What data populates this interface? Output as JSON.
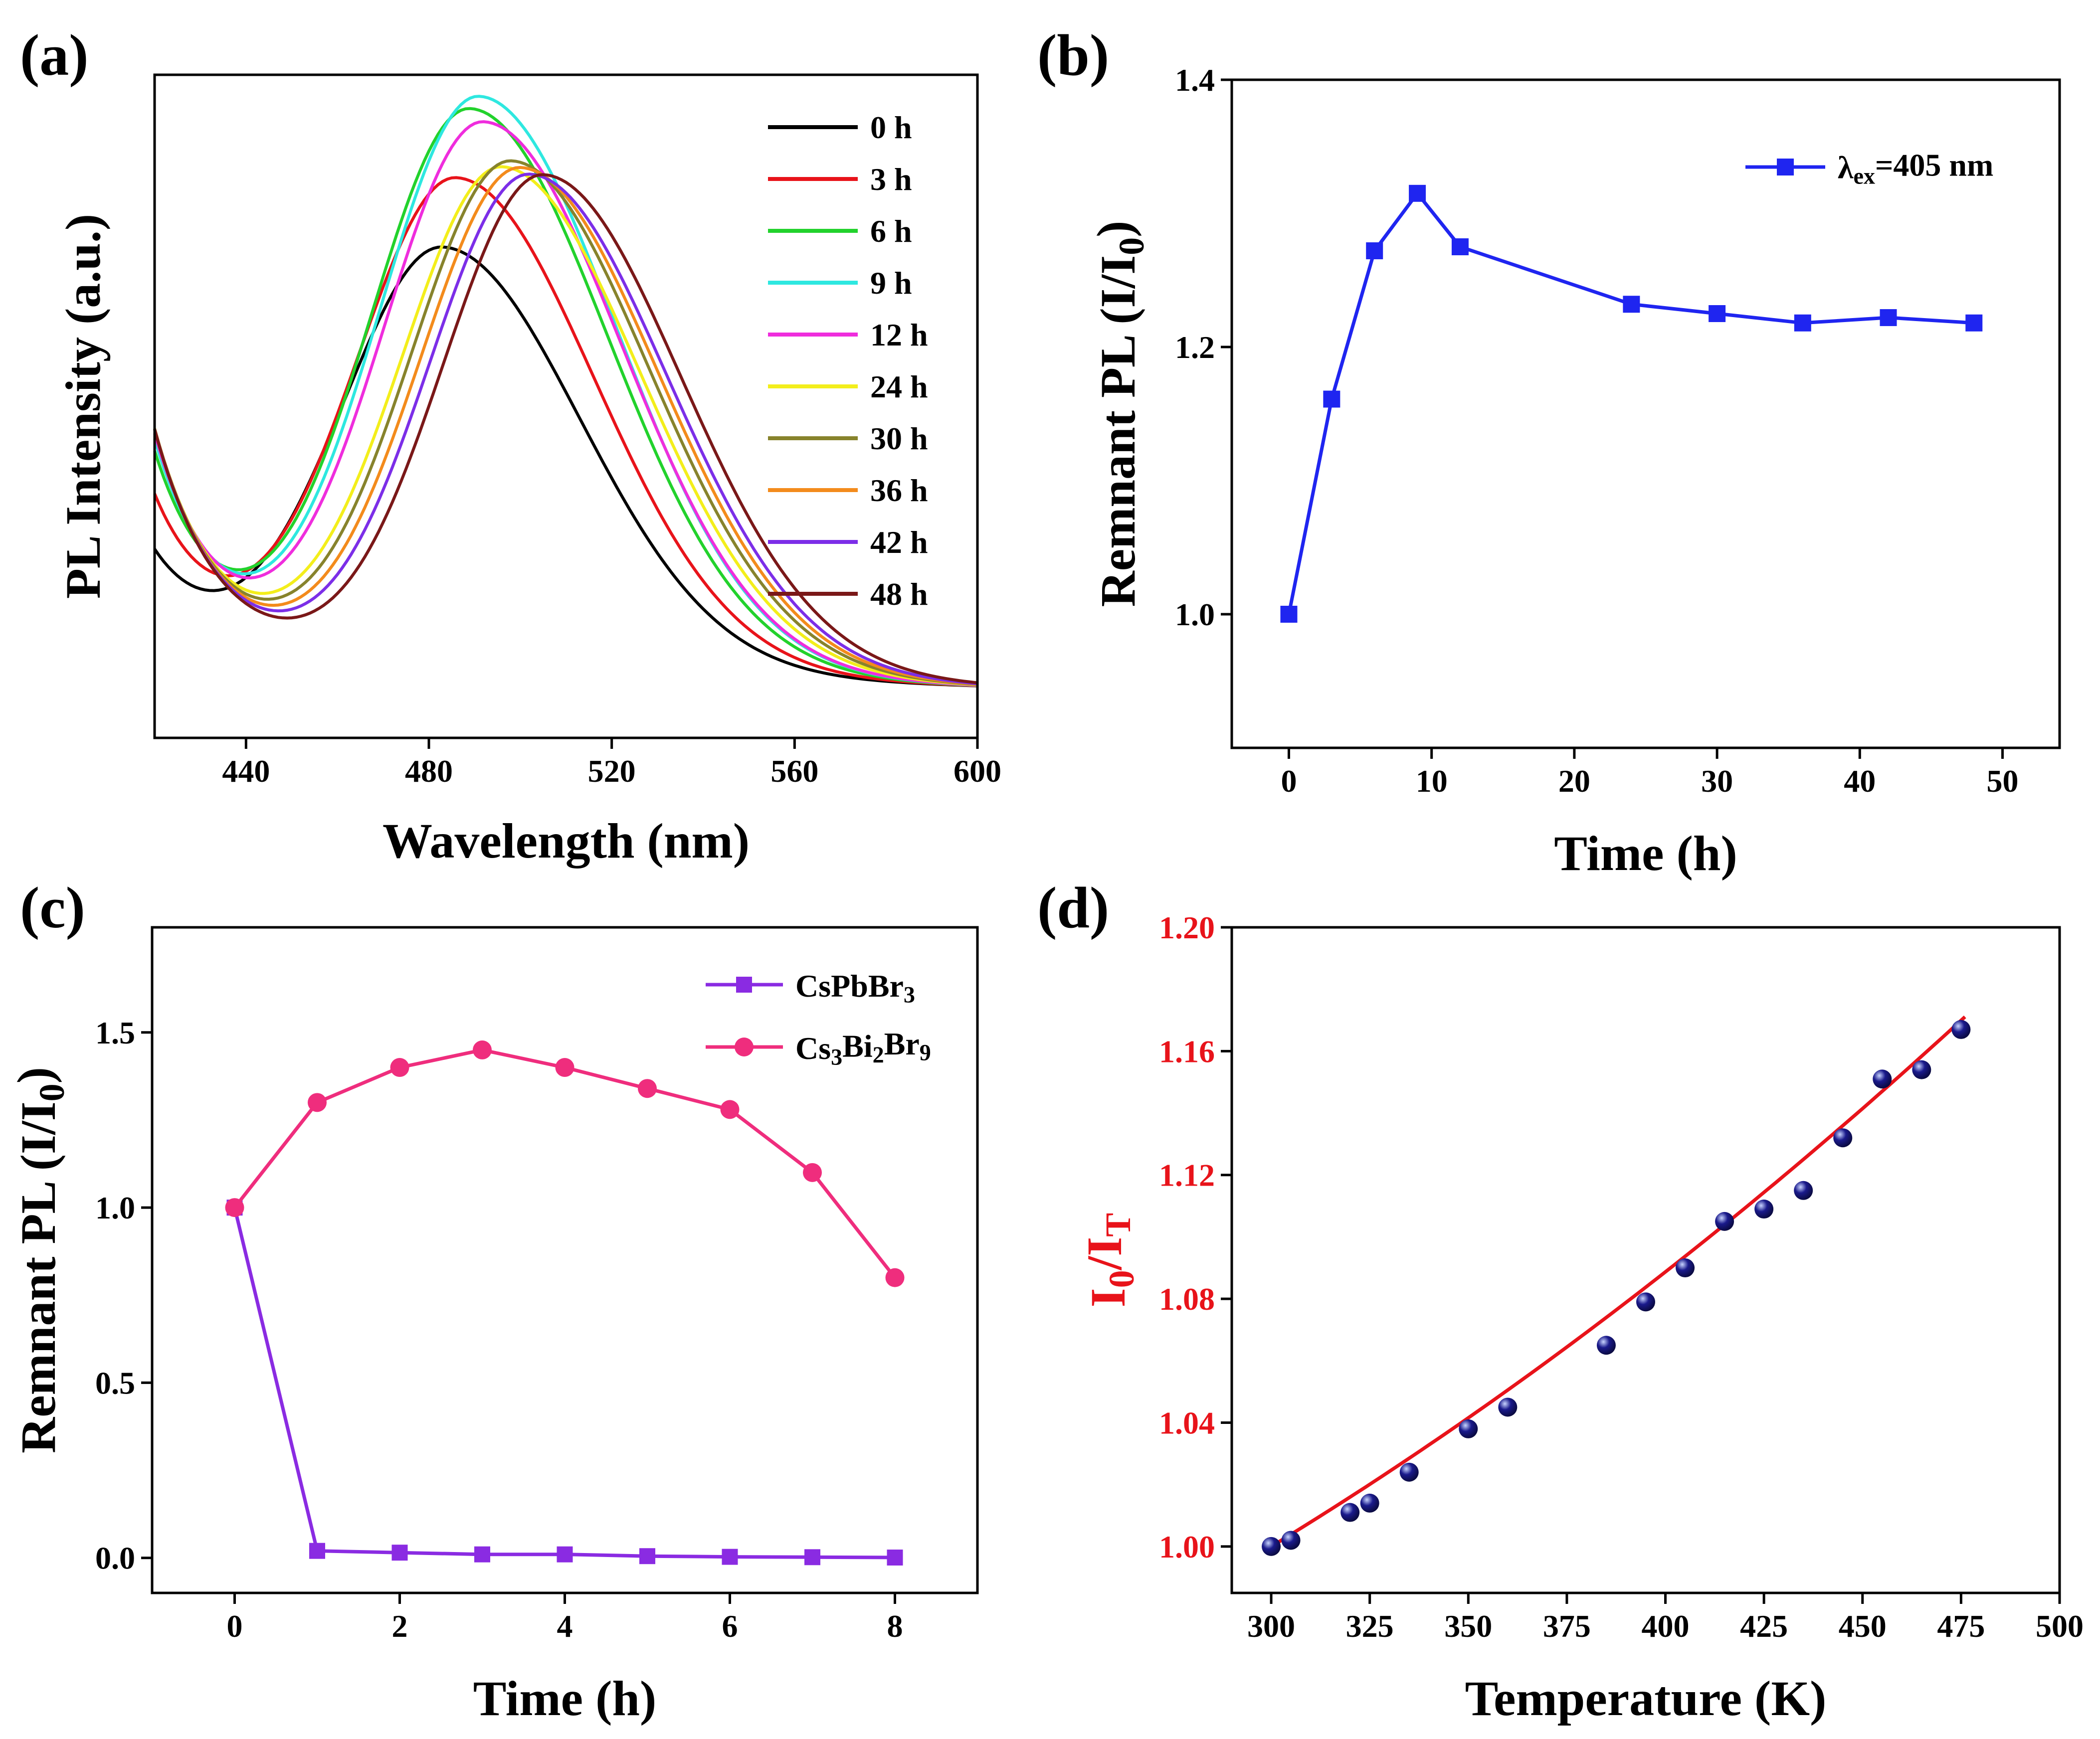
{
  "chart_data": [
    {
      "panel": "(a)",
      "type": "line",
      "xlabel": "Wavelength (nm)",
      "ylabel": "PL Intensity (a.u.)",
      "xlim": [
        420,
        600
      ],
      "ylim": [
        0,
        1.05
      ],
      "xticks": [
        440,
        480,
        520,
        560,
        600
      ],
      "yticks": [],
      "legend_position": "top-right",
      "series": [
        {
          "name": "0 h",
          "color": "#000000",
          "peak": 483,
          "height": 0.76,
          "base": 0.17
        },
        {
          "name": "3 h",
          "color": "#e8131a",
          "peak": 486,
          "height": 0.87,
          "base": 0.26
        },
        {
          "name": "6 h",
          "color": "#22d22c",
          "peak": 489,
          "height": 0.98,
          "base": 0.33
        },
        {
          "name": "9 h",
          "color": "#2ee8e0",
          "peak": 491,
          "height": 1.0,
          "base": 0.35
        },
        {
          "name": "12 h",
          "color": "#ef2ddd",
          "peak": 492,
          "height": 0.96,
          "base": 0.36
        },
        {
          "name": "24 h",
          "color": "#f3ee1b",
          "peak": 496,
          "height": 0.89,
          "base": 0.37
        },
        {
          "name": "30 h",
          "color": "#87832c",
          "peak": 498,
          "height": 0.9,
          "base": 0.37
        },
        {
          "name": "36 h",
          "color": "#f38b1c",
          "peak": 500,
          "height": 0.89,
          "base": 0.37
        },
        {
          "name": "42 h",
          "color": "#7c2ee8",
          "peak": 502,
          "height": 0.88,
          "base": 0.37
        },
        {
          "name": "48 h",
          "color": "#7a1818",
          "peak": 505,
          "height": 0.88,
          "base": 0.37
        }
      ]
    },
    {
      "panel": "(b)",
      "type": "line",
      "xlabel": "Time (h)",
      "ylabel": "Remnant PL (I/I",
      "ylabel_sub": "0",
      "ylabel_end": ")",
      "xlim": [
        -4,
        54
      ],
      "ylim": [
        0.9,
        1.4
      ],
      "xticks": [
        0,
        10,
        20,
        30,
        40,
        50
      ],
      "yticks": [
        1.0,
        1.2,
        1.4
      ],
      "legend_position": "top-right",
      "series": [
        {
          "name": "λ",
          "name_sub": "ex",
          "name_rest": "=405 nm",
          "color": "#1f25f0",
          "marker": "square",
          "x": [
            0,
            3,
            6,
            9,
            12,
            24,
            30,
            36,
            42,
            48
          ],
          "y": [
            1.0,
            1.161,
            1.272,
            1.315,
            1.275,
            1.232,
            1.225,
            1.218,
            1.222,
            1.218
          ]
        }
      ]
    },
    {
      "panel": "(c)",
      "type": "line",
      "xlabel": "Time (h)",
      "ylabel": "Remnant PL (I/I",
      "ylabel_sub": "0",
      "ylabel_end": ")",
      "xlim": [
        -1,
        9
      ],
      "ylim": [
        -0.1,
        1.8
      ],
      "xticks": [
        0,
        2,
        4,
        6,
        8
      ],
      "yticks": [
        0.0,
        0.5,
        1.0,
        1.5
      ],
      "legend_position": "top-right",
      "series": [
        {
          "name": "CsPbBr",
          "name_parts": [
            "CsPbBr",
            "3"
          ],
          "color": "#8a2be2",
          "marker": "square",
          "x": [
            0,
            1,
            2,
            3,
            4,
            5,
            6,
            7,
            8
          ],
          "y": [
            1.0,
            0.02,
            0.015,
            0.01,
            0.01,
            0.005,
            0.003,
            0.002,
            0.001
          ]
        },
        {
          "name": "Cs3Bi2Br9",
          "name_parts": [
            "Cs",
            "3",
            "Bi",
            "2",
            "Br",
            "9"
          ],
          "color": "#ef2d7d",
          "marker": "circle",
          "x": [
            0,
            1,
            2,
            3,
            4,
            5,
            6,
            7,
            8
          ],
          "y": [
            1.0,
            1.3,
            1.4,
            1.45,
            1.4,
            1.34,
            1.28,
            1.1,
            0.8
          ]
        }
      ]
    },
    {
      "panel": "(d)",
      "type": "scatter",
      "xlabel": "Temperature (K)",
      "ylabel_parts": [
        "I",
        "0",
        "/I",
        "T"
      ],
      "ylabel_color": "#e8131a",
      "xlim": [
        290,
        500
      ],
      "ylim": [
        0.985,
        1.2
      ],
      "xticks": [
        300,
        325,
        350,
        375,
        400,
        425,
        450,
        475,
        500
      ],
      "yticks": [
        1.0,
        1.04,
        1.08,
        1.12,
        1.16,
        1.2
      ],
      "ytick_labels": [
        "1.00",
        "1.04",
        "1.08",
        "1.12",
        "1.16",
        "1.20"
      ],
      "ytick_color": "#e8131a",
      "points_color": "#1a1a8c",
      "fit_color": "#e8131a",
      "points": {
        "x": [
          300,
          305,
          320,
          325,
          335,
          350,
          360,
          385,
          395,
          405,
          415,
          425,
          435,
          445,
          455,
          465,
          475
        ],
        "y": [
          1.0,
          1.002,
          1.011,
          1.014,
          1.024,
          1.038,
          1.045,
          1.065,
          1.079,
          1.09,
          1.105,
          1.109,
          1.115,
          1.132,
          1.151,
          1.154,
          1.167
        ]
      },
      "fit": {
        "x_range": [
          300,
          476
        ],
        "coefficients": [
          1.0,
          0.000775,
          1.12e-06
        ]
      }
    }
  ]
}
